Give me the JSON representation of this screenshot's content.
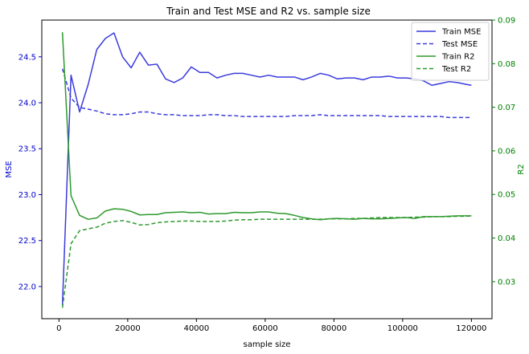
{
  "chart_data": {
    "type": "line",
    "title": "Train and Test MSE and R2 vs. sample size",
    "xlabel": "sample size",
    "ylabel_left": "MSE",
    "ylabel_right": "R2",
    "xlim": [
      -5000,
      126000
    ],
    "ylim_left": [
      21.65,
      24.9
    ],
    "ylim_right": [
      0.0215,
      0.09
    ],
    "xticks": [
      0,
      20000,
      40000,
      60000,
      80000,
      100000,
      120000
    ],
    "yticks_left": [
      22.0,
      22.5,
      23.0,
      23.5,
      24.0,
      24.5
    ],
    "yticks_right": [
      0.03,
      0.04,
      0.05,
      0.06,
      0.07,
      0.08,
      0.09
    ],
    "xtick_labels": [
      "0",
      "20000",
      "40000",
      "60000",
      "80000",
      "100000",
      "120000"
    ],
    "ytick_labels_left": [
      "22.0",
      "22.5",
      "23.0",
      "23.5",
      "24.0",
      "24.5"
    ],
    "ytick_labels_right": [
      "0.03",
      "0.04",
      "0.05",
      "0.06",
      "0.07",
      "0.08",
      "0.09"
    ],
    "colors": {
      "left_axis": "#0000cc",
      "right_axis": "#008000",
      "mse": "#3b3bdd",
      "r2": "#2e9a2e"
    },
    "legend_position": "upper right",
    "x": [
      1000,
      3500,
      6000,
      8500,
      11000,
      13500,
      16000,
      18500,
      21000,
      23500,
      26000,
      28500,
      31000,
      33500,
      36000,
      38500,
      41000,
      43500,
      46000,
      48500,
      51000,
      53500,
      56000,
      58500,
      61000,
      63500,
      66000,
      68500,
      71000,
      73500,
      76000,
      78500,
      81000,
      83500,
      86000,
      88500,
      91000,
      93500,
      96000,
      98500,
      101000,
      103500,
      106000,
      108500,
      111000,
      113500,
      116000,
      118500,
      120000
    ],
    "series": [
      {
        "name": "Train MSE",
        "axis": "left",
        "style": "solid",
        "color": "#3b3bdd",
        "values": [
          21.8,
          24.3,
          23.9,
          24.2,
          24.58,
          24.7,
          24.76,
          24.5,
          24.38,
          24.55,
          24.41,
          24.42,
          24.26,
          24.22,
          24.27,
          24.39,
          24.33,
          24.33,
          24.27,
          24.3,
          24.32,
          24.32,
          24.3,
          24.28,
          24.3,
          24.28,
          24.28,
          24.28,
          24.25,
          24.28,
          24.32,
          24.3,
          24.26,
          24.27,
          24.27,
          24.25,
          24.28,
          24.28,
          24.29,
          24.27,
          24.27,
          24.26,
          24.24,
          24.19,
          24.21,
          24.23,
          24.22,
          24.2,
          24.19
        ]
      },
      {
        "name": "Test MSE",
        "axis": "left",
        "style": "dashed",
        "color": "#3b3bdd",
        "values": [
          24.37,
          24.05,
          23.95,
          23.93,
          23.91,
          23.88,
          23.87,
          23.87,
          23.88,
          23.9,
          23.9,
          23.88,
          23.87,
          23.87,
          23.86,
          23.86,
          23.86,
          23.87,
          23.87,
          23.86,
          23.86,
          23.85,
          23.85,
          23.85,
          23.85,
          23.85,
          23.85,
          23.86,
          23.86,
          23.86,
          23.87,
          23.86,
          23.86,
          23.86,
          23.86,
          23.86,
          23.86,
          23.86,
          23.85,
          23.85,
          23.85,
          23.85,
          23.85,
          23.85,
          23.85,
          23.84,
          23.84,
          23.84,
          23.84
        ]
      },
      {
        "name": "Train R2",
        "axis": "right",
        "style": "solid",
        "color": "#2e9a2e",
        "values": [
          0.0872,
          0.0497,
          0.0452,
          0.0443,
          0.0446,
          0.0462,
          0.0467,
          0.0466,
          0.0461,
          0.0453,
          0.0454,
          0.0454,
          0.0458,
          0.0459,
          0.046,
          0.0458,
          0.0459,
          0.0455,
          0.0456,
          0.0456,
          0.0459,
          0.0458,
          0.0458,
          0.046,
          0.046,
          0.0457,
          0.0456,
          0.0452,
          0.0447,
          0.0444,
          0.0442,
          0.0444,
          0.0445,
          0.0444,
          0.0443,
          0.0445,
          0.0444,
          0.0444,
          0.0445,
          0.0446,
          0.0447,
          0.0445,
          0.0449,
          0.0449,
          0.0449,
          0.045,
          0.0451,
          0.0451,
          0.0451
        ]
      },
      {
        "name": "Test R2",
        "axis": "right",
        "style": "dashed",
        "color": "#2e9a2e",
        "values": [
          0.024,
          0.0387,
          0.0417,
          0.0421,
          0.0425,
          0.0434,
          0.0438,
          0.044,
          0.0436,
          0.043,
          0.0431,
          0.0435,
          0.0437,
          0.0438,
          0.0439,
          0.0439,
          0.0438,
          0.0438,
          0.0438,
          0.0439,
          0.0441,
          0.0442,
          0.0442,
          0.0443,
          0.0443,
          0.0443,
          0.0443,
          0.0443,
          0.0443,
          0.0443,
          0.0443,
          0.0444,
          0.0444,
          0.0444,
          0.0445,
          0.0445,
          0.0446,
          0.0447,
          0.0447,
          0.0447,
          0.0447,
          0.0448,
          0.0448,
          0.0449,
          0.0449,
          0.0449,
          0.045,
          0.045,
          0.0451
        ]
      }
    ]
  }
}
